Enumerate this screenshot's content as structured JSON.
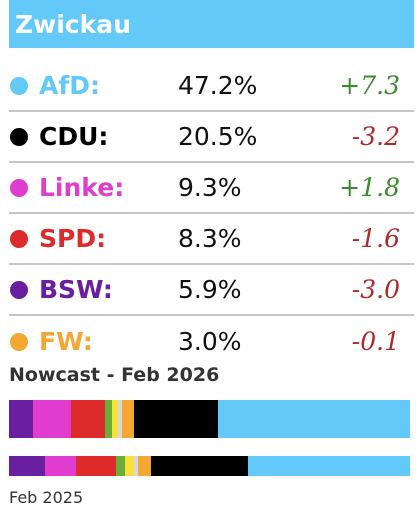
{
  "header": {
    "title": "Zwickau",
    "color": "#62c9f8"
  },
  "rows": [
    {
      "party": "AfD:",
      "pct": "47.2%",
      "change": "+7.3",
      "color": "#62c9f8",
      "change_color": "#3a8a2e"
    },
    {
      "party": "CDU:",
      "pct": "20.5%",
      "change": "-3.2",
      "color": "#000000",
      "change_color": "#b02828"
    },
    {
      "party": "Linke:",
      "pct": "9.3%",
      "change": "+1.8",
      "color": "#e03ccf",
      "change_color": "#3a8a2e"
    },
    {
      "party": "SPD:",
      "pct": "8.3%",
      "change": "-1.6",
      "color": "#dd2a2a",
      "change_color": "#b02828"
    },
    {
      "party": "BSW:",
      "pct": "5.9%",
      "change": "-3.0",
      "color": "#6a1ea0",
      "change_color": "#b02828"
    },
    {
      "party": "FW:",
      "pct": "3.0%",
      "change": "-0.1",
      "color": "#f4a733",
      "change_color": "#b02828"
    }
  ],
  "nowcast": {
    "title": "Nowcast - Feb 2026",
    "segments": [
      {
        "party": "BSW",
        "value": 5.9,
        "color": "#6a1ea0"
      },
      {
        "party": "Linke",
        "value": 9.3,
        "color": "#e03ccf"
      },
      {
        "party": "SPD",
        "value": 8.3,
        "color": "#dd2a2a"
      },
      {
        "party": "Green",
        "value": 1.9,
        "color": "#6aae3a"
      },
      {
        "party": "FDP",
        "value": 1.4,
        "color": "#f7e13a"
      },
      {
        "party": "Other",
        "value": 1.0,
        "color": "#d8d8d8"
      },
      {
        "party": "FW",
        "value": 3.0,
        "color": "#f4a733"
      },
      {
        "party": "CDU",
        "value": 20.5,
        "color": "#000000"
      },
      {
        "party": "AfD",
        "value": 47.2,
        "color": "#62c9f8"
      }
    ]
  },
  "previous": {
    "label": "Feb 2025",
    "segments": [
      {
        "party": "BSW",
        "value": 8.9,
        "color": "#6a1ea0"
      },
      {
        "party": "Linke",
        "value": 7.5,
        "color": "#e03ccf"
      },
      {
        "party": "SPD",
        "value": 9.9,
        "color": "#dd2a2a"
      },
      {
        "party": "Green",
        "value": 2.3,
        "color": "#6aae3a"
      },
      {
        "party": "FDP",
        "value": 2.1,
        "color": "#f7e13a"
      },
      {
        "party": "Other",
        "value": 1.1,
        "color": "#d8d8d8"
      },
      {
        "party": "FW",
        "value": 3.1,
        "color": "#f4a733"
      },
      {
        "party": "CDU",
        "value": 23.7,
        "color": "#000000"
      },
      {
        "party": "AfD",
        "value": 39.9,
        "color": "#62c9f8"
      }
    ]
  }
}
